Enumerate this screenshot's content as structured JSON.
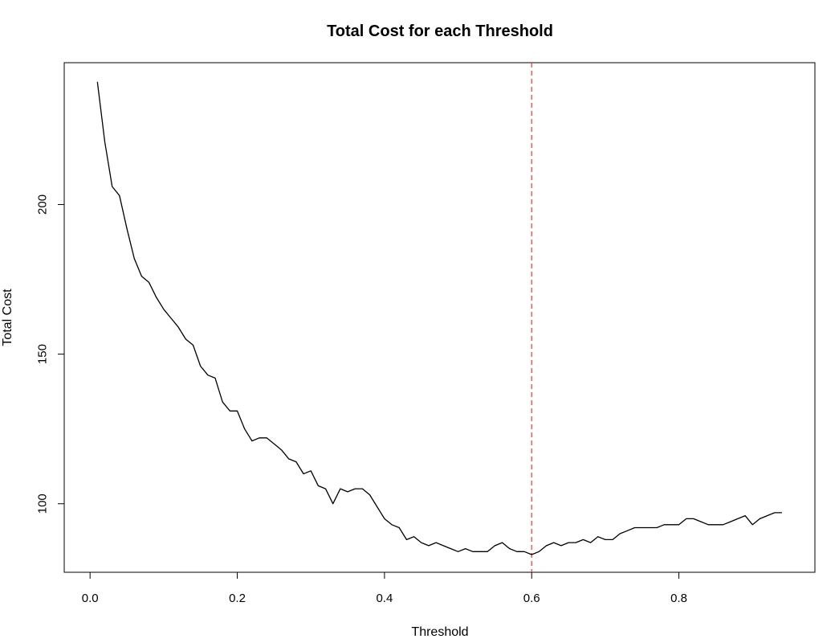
{
  "chart_data": {
    "type": "line",
    "title": "Total Cost for each Threshold",
    "xlabel": "Threshold",
    "ylabel": "Total Cost",
    "xlim": [
      -0.0351,
      0.9848
    ],
    "ylim": [
      77.1,
      247.4
    ],
    "xticks": [
      0.0,
      0.2,
      0.4,
      0.6,
      0.8
    ],
    "xtick_labels": [
      "0.0",
      "0.2",
      "0.4",
      "0.6",
      "0.8"
    ],
    "yticks": [
      100,
      150,
      200
    ],
    "ytick_labels": [
      "100",
      "150",
      "200"
    ],
    "grid": false,
    "legend": "none",
    "line_color": "#000000",
    "reference_line": {
      "orientation": "vertical",
      "x": 0.6,
      "color": "#e8493f",
      "style": "dashed"
    },
    "series": [
      {
        "x": [
          0.01,
          0.02,
          0.03,
          0.04,
          0.05,
          0.06,
          0.07,
          0.08,
          0.09,
          0.1,
          0.11,
          0.12,
          0.13,
          0.14,
          0.15,
          0.16,
          0.17,
          0.18,
          0.19,
          0.2,
          0.21,
          0.22,
          0.23,
          0.24,
          0.25,
          0.26,
          0.27,
          0.28,
          0.29,
          0.3,
          0.31,
          0.32,
          0.33,
          0.34,
          0.35,
          0.36,
          0.37,
          0.38,
          0.39,
          0.4,
          0.41,
          0.42,
          0.43,
          0.44,
          0.45,
          0.46,
          0.47,
          0.48,
          0.49,
          0.5,
          0.51,
          0.52,
          0.53,
          0.54,
          0.55,
          0.56,
          0.57,
          0.58,
          0.59,
          0.6,
          0.61,
          0.62,
          0.63,
          0.64,
          0.65,
          0.66,
          0.67,
          0.68,
          0.69,
          0.7,
          0.71,
          0.72,
          0.73,
          0.74,
          0.75,
          0.76,
          0.77,
          0.78,
          0.79,
          0.8,
          0.81,
          0.82,
          0.83,
          0.84,
          0.85,
          0.86,
          0.87,
          0.88,
          0.89,
          0.9,
          0.91,
          0.92,
          0.93,
          0.94
        ],
        "y": [
          241,
          221,
          206,
          203,
          192,
          182,
          176,
          174,
          169,
          165,
          162,
          159,
          155,
          153,
          146,
          143,
          142,
          134,
          131,
          131,
          125,
          121,
          122,
          122,
          120,
          118,
          115,
          114,
          110,
          111,
          106,
          105,
          100,
          105,
          104,
          105,
          105,
          103,
          99,
          95,
          93,
          92,
          88,
          89,
          87,
          86,
          87,
          86,
          85,
          84,
          85,
          84,
          84,
          84,
          86,
          87,
          85,
          84,
          84,
          83,
          84,
          86,
          87,
          86,
          87,
          87,
          88,
          87,
          89,
          88,
          88,
          90,
          91,
          92,
          92,
          92,
          92,
          93,
          93,
          93,
          95,
          95,
          94,
          93,
          93,
          93,
          94,
          95,
          96,
          93,
          95,
          96,
          97,
          97
        ]
      }
    ]
  }
}
